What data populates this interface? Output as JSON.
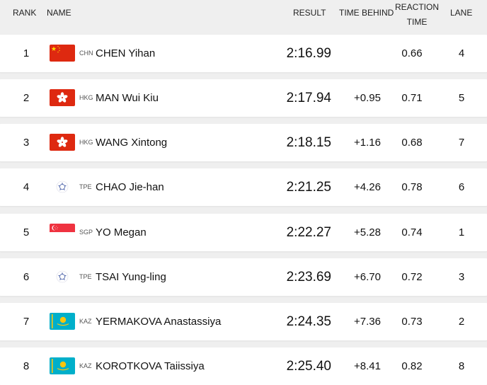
{
  "header": {
    "rank": "RANK",
    "name": "NAME",
    "result": "RESULT",
    "time_behind": "TIME BEHIND",
    "reaction_line1": "REACTION",
    "reaction_line2": "TIME",
    "lane": "LANE"
  },
  "rows": [
    {
      "rank": "1",
      "flag": "flag-chn-icon",
      "code": "CHN",
      "name": "CHEN Yihan",
      "result": "2:16.99",
      "behind": "",
      "reaction": "0.66",
      "lane": "4"
    },
    {
      "rank": "2",
      "flag": "flag-hkg-icon",
      "code": "HKG",
      "name": "MAN Wui Kiu",
      "result": "2:17.94",
      "behind": "+0.95",
      "reaction": "0.71",
      "lane": "5"
    },
    {
      "rank": "3",
      "flag": "flag-hkg-icon",
      "code": "HKG",
      "name": "WANG Xintong",
      "result": "2:18.15",
      "behind": "+1.16",
      "reaction": "0.68",
      "lane": "7"
    },
    {
      "rank": "4",
      "flag": "flag-tpe-icon",
      "code": "TPE",
      "name": "CHAO Jie-han",
      "result": "2:21.25",
      "behind": "+4.26",
      "reaction": "0.78",
      "lane": "6"
    },
    {
      "rank": "5",
      "flag": "flag-sgp-icon",
      "code": "SGP",
      "name": "YO Megan",
      "result": "2:22.27",
      "behind": "+5.28",
      "reaction": "0.74",
      "lane": "1"
    },
    {
      "rank": "6",
      "flag": "flag-tpe-icon",
      "code": "TPE",
      "name": "TSAI Yung-ling",
      "result": "2:23.69",
      "behind": "+6.70",
      "reaction": "0.72",
      "lane": "3"
    },
    {
      "rank": "7",
      "flag": "flag-kaz-icon",
      "code": "KAZ",
      "name": "YERMAKOVA Anastassiya",
      "result": "2:24.35",
      "behind": "+7.36",
      "reaction": "0.73",
      "lane": "2"
    },
    {
      "rank": "8",
      "flag": "flag-kaz-icon",
      "code": "KAZ",
      "name": "KOROTKOVA Taiissiya",
      "result": "2:25.40",
      "behind": "+8.41",
      "reaction": "0.82",
      "lane": "8"
    }
  ],
  "colors": {
    "background": "#efefef",
    "row": "#ffffff",
    "chn_red": "#de2910",
    "chn_yellow": "#ffde00",
    "hkg_red": "#de2910",
    "sgp_red": "#ef3340",
    "kaz_blue": "#00afca",
    "kaz_yellow": "#fec50c",
    "tpe_blue": "#5a6fb0"
  }
}
